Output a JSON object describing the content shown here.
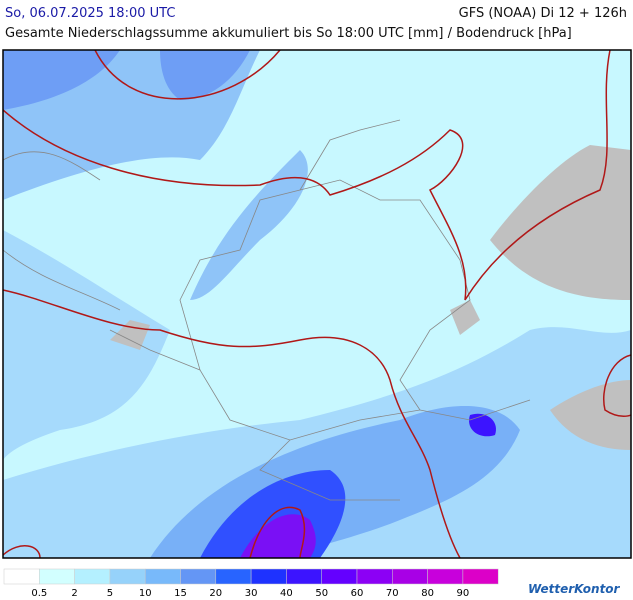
{
  "header": {
    "date": "So, 06.07.2025 18:00 UTC",
    "model": "GFS (NOAA) Di 12 + 126h",
    "subtitle": "Gesamte Niederschlagssumme akkumuliert bis So 18:00 UTC [mm] / Bodendruck [hPa]"
  },
  "legend": {
    "colors": [
      "#ffffff",
      "#d2ffff",
      "#b4f0ff",
      "#96d2fa",
      "#78b9fa",
      "#6496f5",
      "#2864ff",
      "#1e32ff",
      "#3c14ff",
      "#6400ff",
      "#8c00f5",
      "#a800e6",
      "#c800dc",
      "#dc00c8"
    ],
    "labels": [
      "0.5",
      "2",
      "5",
      "10",
      "15",
      "20",
      "30",
      "40",
      "50",
      "60",
      "70",
      "80",
      "90"
    ]
  },
  "logo": "WetterKontor"
}
